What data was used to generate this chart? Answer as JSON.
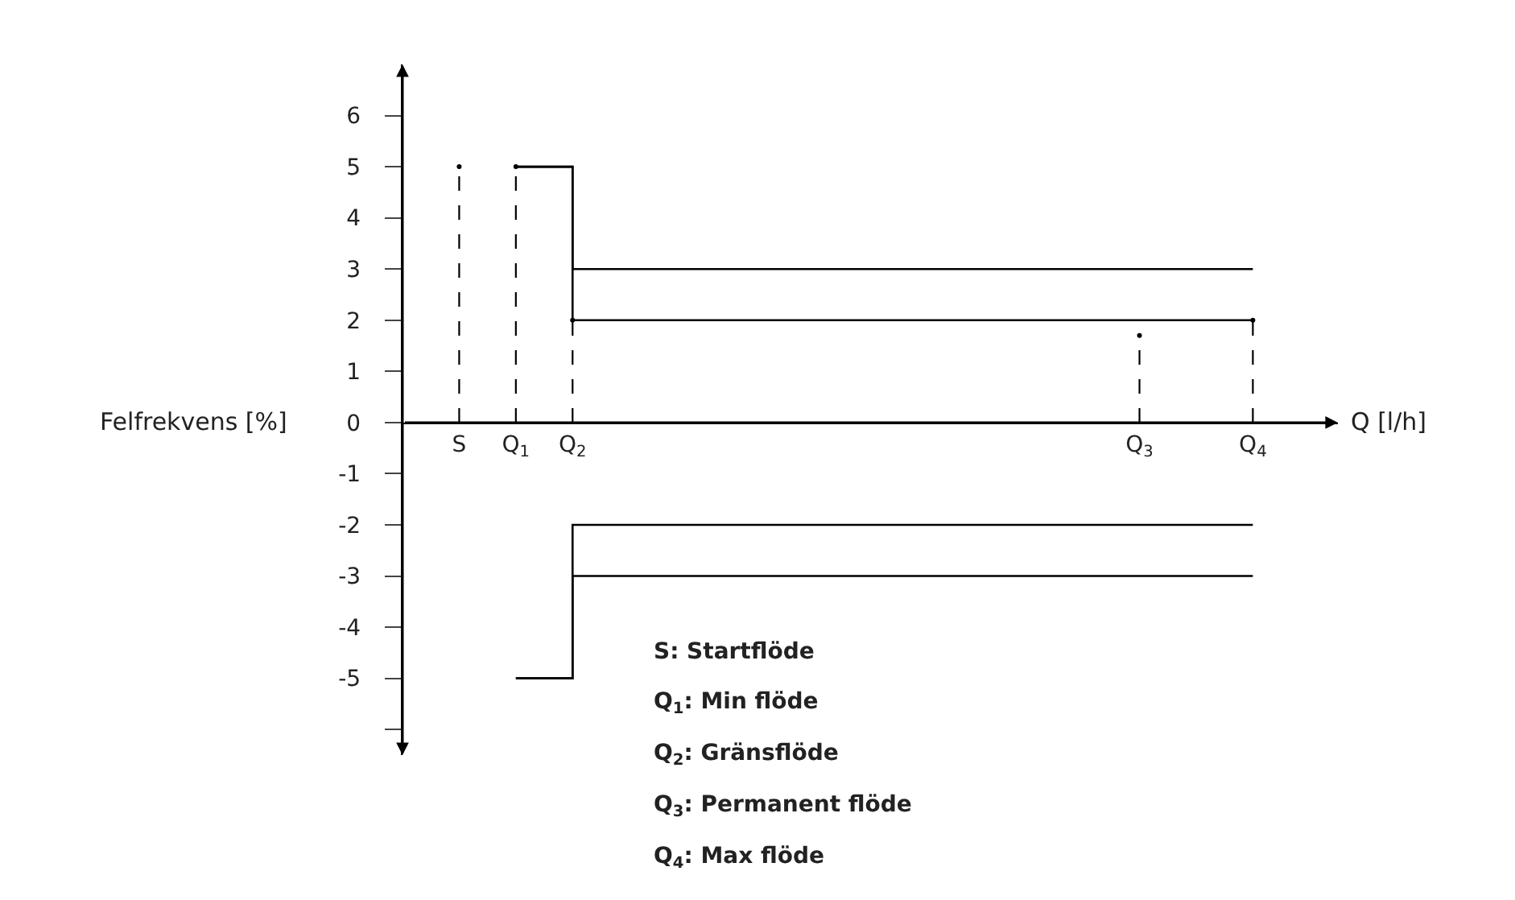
{
  "chart_data": {
    "type": "step",
    "xlabel": "Q [l/h]",
    "ylabel": "Felfrekvens [%]",
    "categories": [
      null,
      "S",
      "Q$_{1}$",
      "Q$_{2}$",
      null,
      null,
      null,
      null,
      null,
      null,
      null,
      null,
      null,
      "Q$_{3}$",
      null,
      "Q$_{4}$",
      null
    ],
    "ylim": [
      -6.5,
      7
    ],
    "yticks": [
      {
        "value": -6,
        "label": null
      },
      -5,
      -4,
      -3,
      -2,
      -1,
      0,
      1,
      2,
      3,
      4,
      5,
      6
    ],
    "marker": "none",
    "annotations": [
      "S: Startflöde",
      "Q$_{1}$: Min flöde",
      "Q$_{2}$: Gränsflöde",
      "Q$_{3}$: Permanent flöde",
      "Q$_{4}$: Max flöde"
    ],
    "series": [
      {
        "color": "#000000",
        "line_style": "solid",
        "values": [
          null,
          null,
          5,
          3,
          3,
          3,
          3,
          3,
          3,
          3,
          3,
          3,
          3,
          3,
          3,
          3,
          null
        ]
      },
      {
        "color": "#000000",
        "line_style": "solid",
        "values": [
          null,
          null,
          5,
          2,
          2,
          2,
          2,
          2,
          2,
          2,
          2,
          2,
          2,
          2,
          2,
          2,
          null
        ]
      },
      {
        "color": "#000000",
        "line_style": "solid",
        "values": [
          null,
          null,
          -5,
          -3,
          -3,
          -3,
          -3,
          -3,
          -3,
          -3,
          -3,
          -3,
          -3,
          -3,
          -3,
          -3,
          null
        ]
      },
      {
        "color": "#000000",
        "line_style": "solid",
        "values": [
          null,
          null,
          -5,
          -2,
          -2,
          -2,
          -2,
          -2,
          -2,
          -2,
          -2,
          -2,
          -2,
          -2,
          -2,
          -2,
          null
        ]
      },
      {
        "type": "lollipop",
        "color": "#000000",
        "line_style": "dashed",
        "values": [
          null,
          5,
          5,
          2,
          null,
          null,
          null,
          null,
          null,
          null,
          null,
          null,
          null,
          1.7,
          null,
          2,
          null
        ]
      }
    ]
  }
}
